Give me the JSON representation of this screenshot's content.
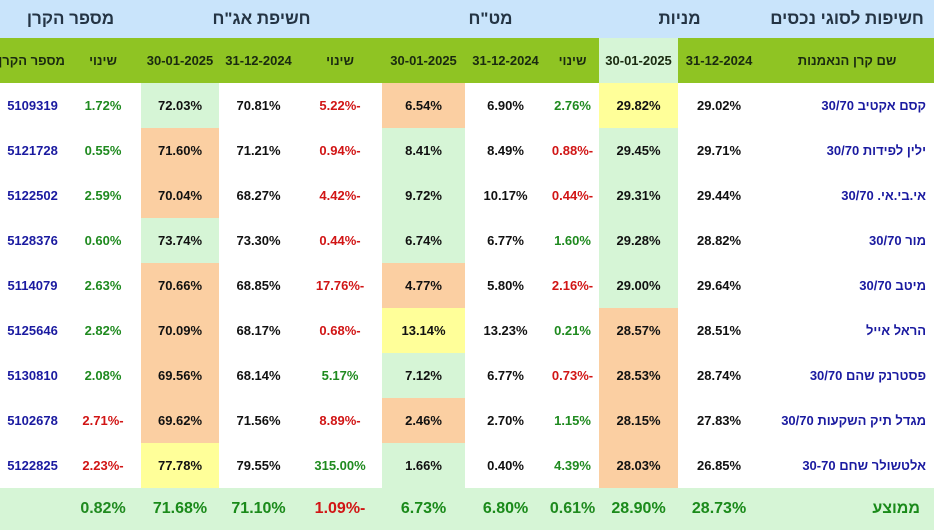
{
  "chart_data": {
    "type": "table",
    "title": "",
    "groups": [
      {
        "label": "חשיפות לסוגי נכסים"
      },
      {
        "label": "מניות"
      },
      {
        "label": "מט\"ח"
      },
      {
        "label": "חשיפת אג\"ח"
      },
      {
        "label": "מספר הקרן"
      }
    ],
    "columns": [
      "שם קרן הנאמנות",
      "31-12-2024",
      "30-01-2025",
      "שינוי",
      "31-12-2024",
      "30-01-2025",
      "שינוי",
      "31-12-2024",
      "30-01-2025",
      "שינוי",
      "מספר הקרן"
    ],
    "rows": [
      {
        "name": "קסם אקטיב 30/70",
        "eq_dec": "29.02%",
        "eq_jan": "29.82%",
        "fx_chg": "2.76%",
        "fx_dec": "6.90%",
        "fx_jan": "6.54%",
        "bd_chg": "-5.22%",
        "bd_dec": "70.81%",
        "bd_jan": "72.03%",
        "chg3": "1.72%",
        "fund_no": "5109319"
      },
      {
        "name": "ילין לפידות 30/70",
        "eq_dec": "29.71%",
        "eq_jan": "29.45%",
        "fx_chg": "-0.88%",
        "fx_dec": "8.49%",
        "fx_jan": "8.41%",
        "bd_chg": "-0.94%",
        "bd_dec": "71.21%",
        "bd_jan": "71.60%",
        "chg3": "0.55%",
        "fund_no": "5121728"
      },
      {
        "name": "אי.בי.אי. 30/70",
        "eq_dec": "29.44%",
        "eq_jan": "29.31%",
        "fx_chg": "-0.44%",
        "fx_dec": "10.17%",
        "fx_jan": "9.72%",
        "bd_chg": "-4.42%",
        "bd_dec": "68.27%",
        "bd_jan": "70.04%",
        "chg3": "2.59%",
        "fund_no": "5122502"
      },
      {
        "name": "מור 30/70",
        "eq_dec": "28.82%",
        "eq_jan": "29.28%",
        "fx_chg": "1.60%",
        "fx_dec": "6.77%",
        "fx_jan": "6.74%",
        "bd_chg": "-0.44%",
        "bd_dec": "73.30%",
        "bd_jan": "73.74%",
        "chg3": "0.60%",
        "fund_no": "5128376"
      },
      {
        "name": "מיטב 30/70",
        "eq_dec": "29.64%",
        "eq_jan": "29.00%",
        "fx_chg": "-2.16%",
        "fx_dec": "5.80%",
        "fx_jan": "4.77%",
        "bd_chg": "-17.76%",
        "bd_dec": "68.85%",
        "bd_jan": "70.66%",
        "chg3": "2.63%",
        "fund_no": "5114079"
      },
      {
        "name": "הראל אייל",
        "eq_dec": "28.51%",
        "eq_jan": "28.57%",
        "fx_chg": "0.21%",
        "fx_dec": "13.23%",
        "fx_jan": "13.14%",
        "bd_chg": "-0.68%",
        "bd_dec": "68.17%",
        "bd_jan": "70.09%",
        "chg3": "2.82%",
        "fund_no": "5125646"
      },
      {
        "name": "פסטרנק שהם 30/70",
        "eq_dec": "28.74%",
        "eq_jan": "28.53%",
        "fx_chg": "-0.73%",
        "fx_dec": "6.77%",
        "fx_jan": "7.12%",
        "bd_chg": "5.17%",
        "bd_dec": "68.14%",
        "bd_jan": "69.56%",
        "chg3": "2.08%",
        "fund_no": "5130810"
      },
      {
        "name": "מגדל תיק השקעות 30/70",
        "eq_dec": "27.83%",
        "eq_jan": "28.15%",
        "fx_chg": "1.15%",
        "fx_dec": "2.70%",
        "fx_jan": "2.46%",
        "bd_chg": "-8.89%",
        "bd_dec": "71.56%",
        "bd_jan": "69.62%",
        "chg3": "-2.71%",
        "fund_no": "5102678"
      },
      {
        "name": "אלטשולר שחם 30-70",
        "eq_dec": "26.85%",
        "eq_jan": "28.03%",
        "fx_chg": "4.39%",
        "fx_dec": "0.40%",
        "fx_jan": "1.66%",
        "bd_chg": "315.00%",
        "bd_dec": "79.55%",
        "bd_jan": "77.78%",
        "chg3": "-2.23%",
        "fund_no": "5122825"
      }
    ],
    "average": {
      "label": "ממוצע",
      "eq_dec": "28.73%",
      "eq_jan": "28.90%",
      "fx_chg": "0.61%",
      "fx_dec": "6.80%",
      "fx_jan": "6.73%",
      "bd_chg": "-1.09%",
      "bd_dec": "71.10%",
      "bd_jan": "71.68%",
      "chg3": "0.82%"
    },
    "colors": {
      "header_blue": "#c9e4fb",
      "header_green": "#8fc423",
      "highlight_green": "#d6f5d6",
      "highlight_orange": "#fbcfa2",
      "highlight_yellow": "#ffff99",
      "positive": "#1f8a1f",
      "negative": "#d11515",
      "fund_text": "#1a1aa0"
    },
    "highlights": {
      "eq_jan": [
        "yellow",
        "green",
        "green",
        "green",
        "green",
        "orange",
        "orange",
        "orange",
        "orange"
      ],
      "fx_jan": [
        "orange",
        "green",
        "green",
        "green",
        "orange",
        "yellow",
        "green",
        "orange",
        "green"
      ],
      "bd_jan": [
        "green",
        "orange",
        "orange",
        "green",
        "orange",
        "orange",
        "orange",
        "orange",
        "yellow"
      ]
    }
  }
}
